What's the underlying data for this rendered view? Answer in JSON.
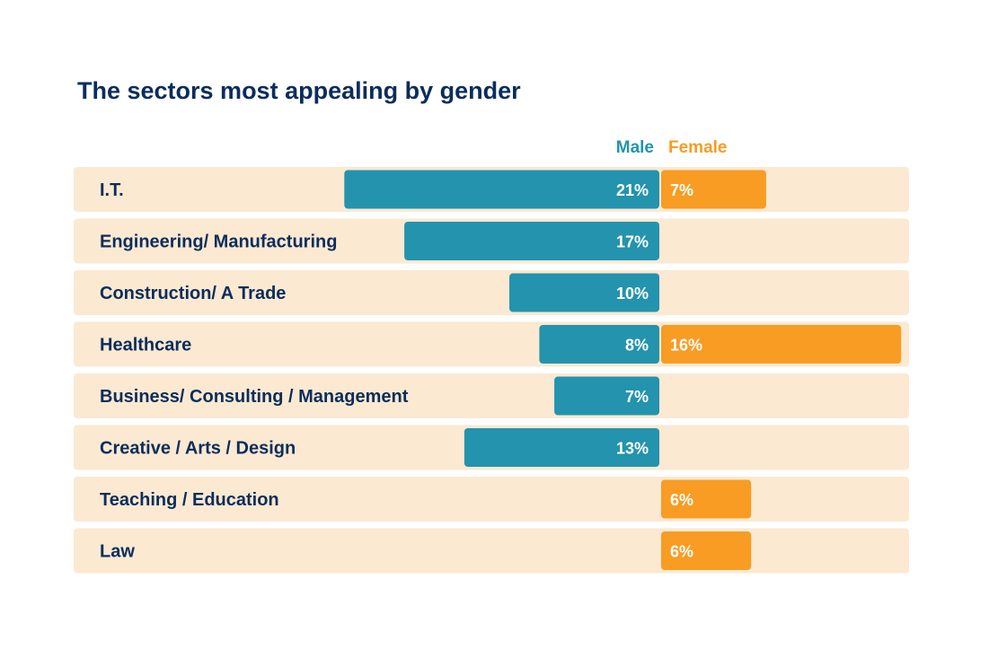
{
  "chart_data": {
    "type": "bar",
    "orientation": "horizontal-diverging",
    "title": "The sectors most appealing by gender",
    "categories": [
      "I.T.",
      "Engineering/ Manufacturing",
      "Construction/ A Trade",
      "Healthcare",
      "Business/ Consulting / Management",
      "Creative / Arts / Design",
      "Teaching / Education",
      "Law"
    ],
    "series": [
      {
        "name": "Male",
        "color": "#2393ae",
        "values": [
          21,
          17,
          10,
          8,
          7,
          13,
          null,
          null
        ],
        "labels": [
          "21%",
          "17%",
          "10%",
          "8%",
          "7%",
          "13%",
          "",
          ""
        ]
      },
      {
        "name": "Female",
        "color": "#f89c23",
        "values": [
          7,
          null,
          null,
          16,
          null,
          null,
          6,
          6
        ],
        "labels": [
          "7%",
          "",
          "",
          "16%",
          "",
          "",
          "6%",
          "6%"
        ]
      }
    ],
    "legend_position": "top-right",
    "grid": false
  }
}
